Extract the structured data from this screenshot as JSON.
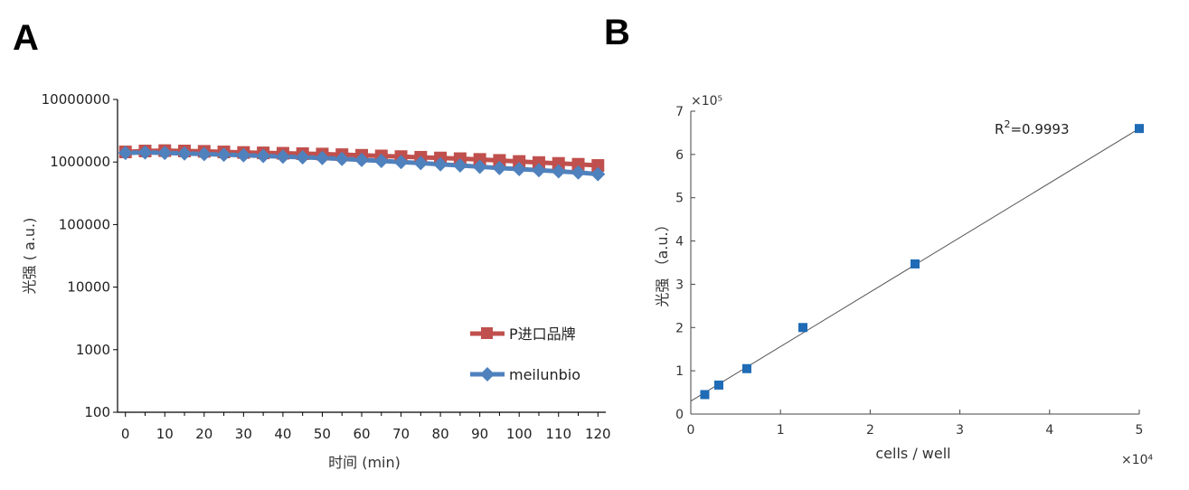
{
  "panels": {
    "a_label": "A",
    "b_label": "B"
  },
  "colors": {
    "red": "#C0504D",
    "blue": "#4F81BD",
    "b_marker": "#1F6BB5",
    "fit_line": "#555555"
  },
  "chart_data": [
    {
      "panel": "A",
      "type": "line",
      "xlabel": "时间 (min)",
      "ylabel": "光强 ( a.u.)",
      "yscale": "log",
      "ylim": [
        100,
        10000000
      ],
      "xlim": [
        -2,
        122
      ],
      "x_ticks": [
        0,
        10,
        20,
        30,
        40,
        50,
        60,
        70,
        80,
        90,
        100,
        110,
        120
      ],
      "y_ticks": [
        100,
        1000,
        10000,
        100000,
        1000000,
        10000000
      ],
      "y_tick_labels": [
        "100",
        "1000",
        "10000",
        "100000",
        "1000000",
        "10000000"
      ],
      "grid": false,
      "legend_position": "bottom-right",
      "x": [
        0,
        5,
        10,
        15,
        20,
        25,
        30,
        35,
        40,
        45,
        50,
        55,
        60,
        65,
        70,
        75,
        80,
        85,
        90,
        95,
        100,
        105,
        110,
        115,
        120
      ],
      "series": [
        {
          "name": "P进口品牌",
          "color": "#C0504D",
          "marker": "square",
          "values": [
            1450000,
            1500000,
            1520000,
            1500000,
            1480000,
            1450000,
            1420000,
            1400000,
            1380000,
            1360000,
            1340000,
            1310000,
            1280000,
            1250000,
            1220000,
            1190000,
            1160000,
            1130000,
            1100000,
            1060000,
            1020000,
            980000,
            950000,
            920000,
            880000
          ]
        },
        {
          "name": "meilunbio",
          "color": "#4F81BD",
          "marker": "diamond",
          "values": [
            1400000,
            1420000,
            1400000,
            1370000,
            1340000,
            1310000,
            1280000,
            1250000,
            1220000,
            1190000,
            1160000,
            1120000,
            1080000,
            1040000,
            1000000,
            960000,
            920000,
            880000,
            840000,
            800000,
            770000,
            740000,
            710000,
            680000,
            640000
          ]
        }
      ]
    },
    {
      "panel": "B",
      "type": "scatter",
      "xlabel": "cells / well",
      "ylabel": "光强 （a.u.）",
      "xlim": [
        0,
        5
      ],
      "ylim": [
        0,
        7
      ],
      "x_ticks": [
        0,
        1,
        2,
        3,
        4,
        5
      ],
      "y_ticks": [
        0,
        1,
        2,
        3,
        4,
        5,
        6,
        7
      ],
      "x_multiplier": "×10⁴",
      "y_multiplier": "×10⁵",
      "grid": false,
      "points": {
        "x": [
          0.156,
          0.3125,
          0.625,
          1.25,
          2.5,
          5.0
        ],
        "y": [
          0.45,
          0.67,
          1.05,
          2.0,
          3.47,
          6.6
        ]
      },
      "fit_line": {
        "x": [
          0,
          5
        ],
        "y": [
          0.3,
          6.6
        ]
      },
      "annotation": {
        "base": "R",
        "superscript": "2",
        "rest": "=0.9993"
      }
    }
  ]
}
